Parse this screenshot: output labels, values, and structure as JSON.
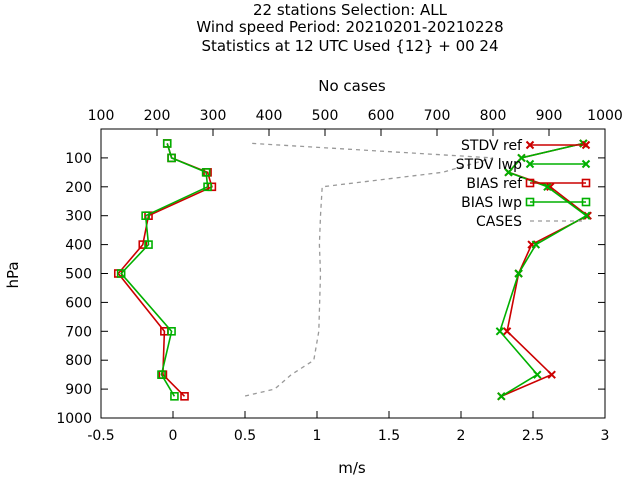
{
  "chart_data": {
    "type": "line",
    "title_lines": [
      "22 stations Selection: ALL",
      "Wind speed  Period: 20210201-20210228",
      "Statistics at 12 UTC  Used {12} + 00 24"
    ],
    "xlabel": "m/s",
    "x2label": "No cases",
    "ylabel": "hPa",
    "xlim": [
      -0.5,
      3
    ],
    "x2lim": [
      100,
      1000
    ],
    "ylim": [
      1000,
      0
    ],
    "xticks": [
      "-0.5",
      "0",
      "0.5",
      "1",
      "1.5",
      "2",
      "2.5",
      "3"
    ],
    "x2ticks": [
      "100",
      "200",
      "300",
      "400",
      "500",
      "600",
      "700",
      "800",
      "900",
      "1000"
    ],
    "yticks": [
      "100",
      "200",
      "300",
      "400",
      "500",
      "600",
      "700",
      "800",
      "900",
      "1000"
    ],
    "legend_position": "top-right",
    "series": [
      {
        "name": "STDV ref",
        "axis": "x1",
        "color": "#cc0000",
        "marker": "x",
        "dash": "solid",
        "points": [
          [
            2.85,
            50
          ],
          [
            2.42,
            100
          ],
          [
            2.33,
            150
          ],
          [
            2.62,
            200
          ],
          [
            2.88,
            300
          ],
          [
            2.49,
            400
          ],
          [
            2.4,
            500
          ],
          [
            2.32,
            700
          ],
          [
            2.63,
            850
          ],
          [
            2.28,
            925
          ]
        ]
      },
      {
        "name": "STDV lwp",
        "axis": "x1",
        "color": "#00b000",
        "marker": "x",
        "dash": "solid",
        "points": [
          [
            2.85,
            50
          ],
          [
            2.42,
            100
          ],
          [
            2.33,
            150
          ],
          [
            2.6,
            200
          ],
          [
            2.87,
            300
          ],
          [
            2.52,
            400
          ],
          [
            2.4,
            500
          ],
          [
            2.27,
            700
          ],
          [
            2.53,
            850
          ],
          [
            2.28,
            925
          ]
        ]
      },
      {
        "name": "BIAS ref",
        "axis": "x1",
        "color": "#cc0000",
        "marker": "square",
        "dash": "solid",
        "points": [
          [
            -0.04,
            50
          ],
          [
            -0.01,
            100
          ],
          [
            0.24,
            150
          ],
          [
            0.27,
            200
          ],
          [
            -0.17,
            300
          ],
          [
            -0.21,
            400
          ],
          [
            -0.38,
            500
          ],
          [
            -0.06,
            700
          ],
          [
            -0.07,
            850
          ],
          [
            0.08,
            925
          ]
        ]
      },
      {
        "name": "BIAS lwp",
        "axis": "x1",
        "color": "#00b000",
        "marker": "square",
        "dash": "solid",
        "points": [
          [
            -0.04,
            50
          ],
          [
            -0.01,
            100
          ],
          [
            0.23,
            150
          ],
          [
            0.24,
            200
          ],
          [
            -0.19,
            300
          ],
          [
            -0.17,
            400
          ],
          [
            -0.36,
            500
          ],
          [
            -0.01,
            700
          ],
          [
            -0.08,
            850
          ],
          [
            0.01,
            925
          ]
        ]
      },
      {
        "name": "CASES",
        "axis": "x2",
        "color": "#999999",
        "marker": "none",
        "dash": "dashed",
        "points": [
          [
            370,
            50
          ],
          [
            800,
            100
          ],
          [
            710,
            150
          ],
          [
            495,
            200
          ],
          [
            492,
            300
          ],
          [
            490,
            400
          ],
          [
            492,
            500
          ],
          [
            489,
            700
          ],
          [
            480,
            800
          ],
          [
            440,
            850
          ],
          [
            410,
            900
          ],
          [
            355,
            925
          ]
        ]
      }
    ]
  }
}
